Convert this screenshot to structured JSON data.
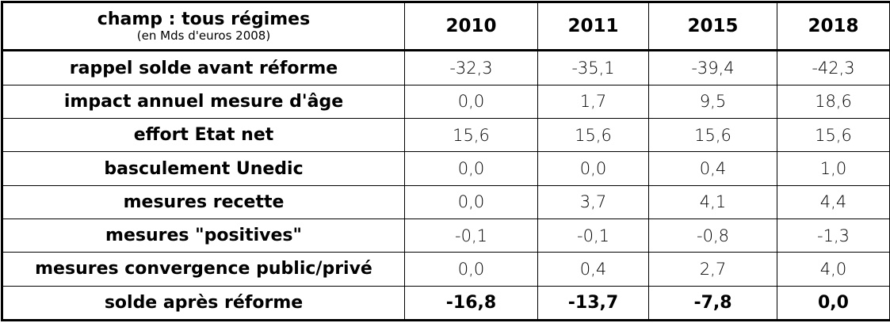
{
  "table": {
    "header": {
      "title": "champ : tous régimes",
      "subtitle": "(en Mds d'euros 2008)",
      "columns": [
        "2010",
        "2011",
        "2015",
        "2018"
      ]
    },
    "rows": [
      [
        "rappel solde avant réforme",
        "-32,3",
        "-35,1",
        "-39,4",
        "-42,3"
      ],
      [
        "impact annuel mesure d'âge",
        "0,0",
        "1,7",
        "9,5",
        "18,6"
      ],
      [
        "effort Etat net",
        "15,6",
        "15,6",
        "15,6",
        "15,6"
      ],
      [
        "basculement Unedic",
        "0,0",
        "0,0",
        "0,4",
        "1,0"
      ],
      [
        "mesures recette",
        "0,0",
        "3,7",
        "4,1",
        "4,4"
      ],
      [
        "mesures \"positives\"",
        "-0,1",
        "-0,1",
        "-0,8",
        "-1,3"
      ],
      [
        "mesures convergence public/privé",
        "0,0",
        "0,4",
        "2,7",
        "4,0"
      ],
      [
        "solde après réforme",
        "-16,8",
        "-13,7",
        "-7,8",
        "0,0"
      ]
    ]
  }
}
